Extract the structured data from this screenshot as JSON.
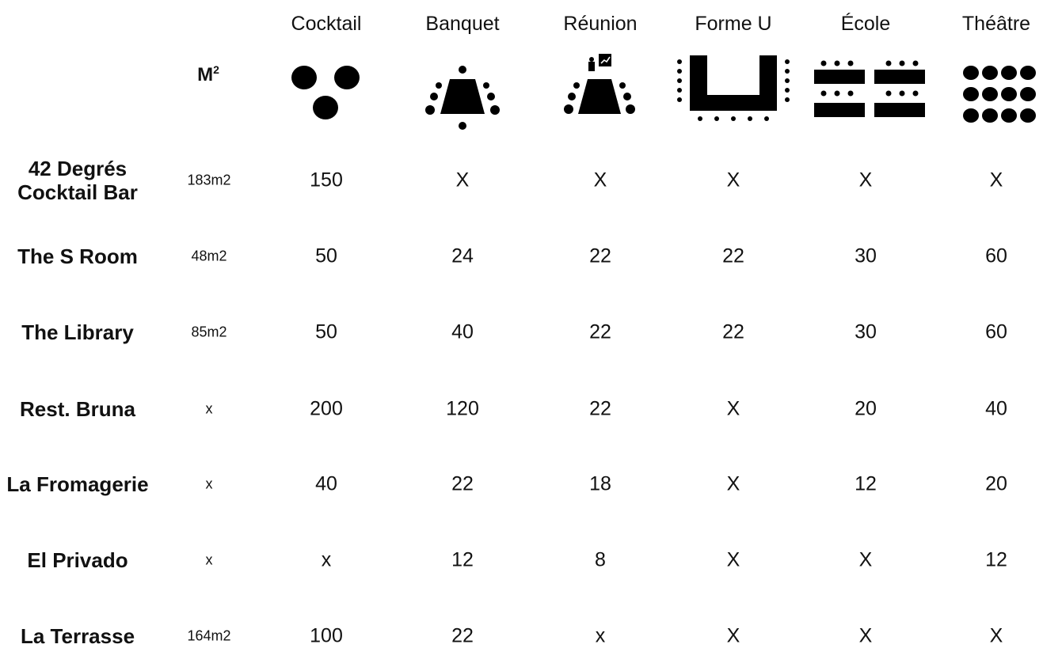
{
  "header": {
    "m2_label": "M",
    "m2_sup": "2",
    "columns": [
      {
        "label": "Cocktail",
        "icon": "cocktail-layout-icon"
      },
      {
        "label": "Banquet",
        "icon": "banquet-layout-icon"
      },
      {
        "label": "Réunion",
        "icon": "meeting-layout-icon"
      },
      {
        "label": "Forme U",
        "icon": "u-shape-layout-icon"
      },
      {
        "label": "École",
        "icon": "classroom-layout-icon"
      },
      {
        "label": "Théâtre",
        "icon": "theatre-layout-icon"
      }
    ]
  },
  "rows": [
    {
      "name": [
        "42 Degrés",
        "Cocktail Bar"
      ],
      "area": "183m2",
      "values": [
        "150",
        "X",
        "X",
        "X",
        "X",
        "X"
      ]
    },
    {
      "name": [
        "The S Room"
      ],
      "area": "48m2",
      "values": [
        "50",
        "24",
        "22",
        "22",
        "30",
        "60"
      ]
    },
    {
      "name": [
        "The Library"
      ],
      "area": "85m2",
      "values": [
        "50",
        "40",
        "22",
        "22",
        "30",
        "60"
      ]
    },
    {
      "name": [
        "Rest. Bruna"
      ],
      "area": "x",
      "values": [
        "200",
        "120",
        "22",
        "X",
        "20",
        "40"
      ]
    },
    {
      "name": [
        "La Fromagerie"
      ],
      "area": "x",
      "values": [
        "40",
        "22",
        "18",
        "X",
        "12",
        "20"
      ]
    },
    {
      "name": [
        "El Privado"
      ],
      "area": "x",
      "values": [
        "x",
        "12",
        "8",
        "X",
        "X",
        "12"
      ]
    },
    {
      "name": [
        "La Terrasse"
      ],
      "area": "164m2",
      "values": [
        "100",
        "22",
        "x",
        "X",
        "X",
        "X"
      ]
    }
  ]
}
